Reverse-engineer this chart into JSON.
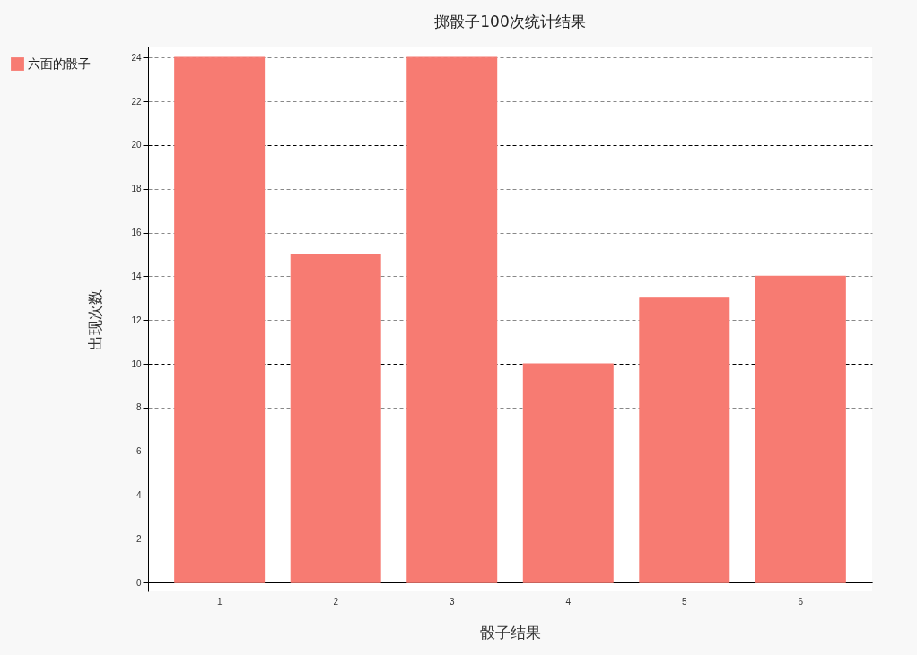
{
  "chart_data": {
    "type": "bar",
    "title": "掷骰子100次统计结果",
    "xlabel": "骰子结果",
    "ylabel": "出现次数",
    "categories": [
      "1",
      "2",
      "3",
      "4",
      "5",
      "6"
    ],
    "series": [
      {
        "name": "六面的骰子",
        "color": "#f77b72",
        "values": [
          24,
          15,
          24,
          10,
          13,
          14
        ]
      }
    ],
    "ylim": [
      -0.4,
      24.5
    ],
    "yticks": [
      0,
      2,
      4,
      6,
      8,
      10,
      12,
      14,
      16,
      18,
      20,
      22,
      24
    ],
    "grid": "y",
    "legend": "top left"
  }
}
